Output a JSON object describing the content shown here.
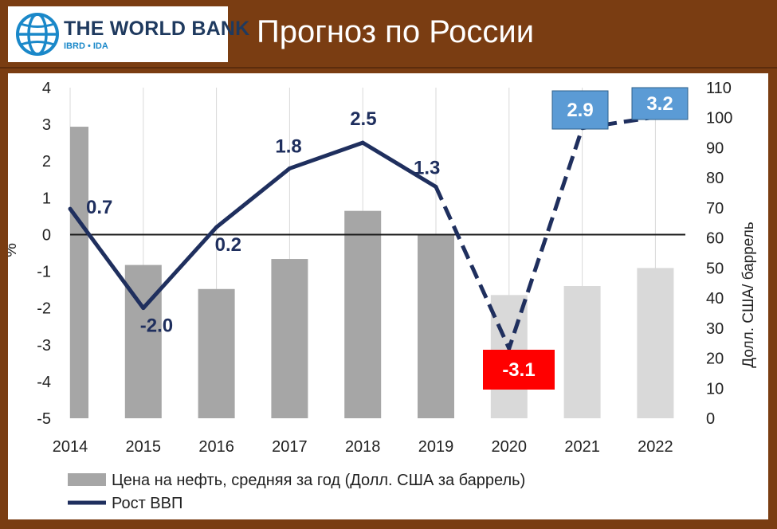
{
  "header": {
    "logo_name": "THE WORLD BANK",
    "logo_sub": "IBRD • IDA",
    "title": "Прогноз по России"
  },
  "chart_data": {
    "type": "bar+line",
    "categories": [
      "2014",
      "2015",
      "2016",
      "2017",
      "2018",
      "2019",
      "2020",
      "2021",
      "2022"
    ],
    "series": [
      {
        "name": "Цена на нефть, средняя за год (Долл. США за баррель)",
        "type": "bar",
        "axis": "right",
        "values": [
          97,
          51,
          43,
          53,
          69,
          61,
          41,
          44,
          50
        ],
        "colors": [
          "#a6a6a6",
          "#a6a6a6",
          "#a6a6a6",
          "#a6a6a6",
          "#a6a6a6",
          "#a6a6a6",
          "#d9d9d9",
          "#d9d9d9",
          "#d9d9d9"
        ]
      },
      {
        "name": "Рост ВВП",
        "type": "line",
        "axis": "left",
        "values": [
          0.7,
          -2.0,
          0.2,
          1.8,
          2.5,
          1.3,
          -3.1,
          2.9,
          3.2
        ],
        "labels": [
          "0.7",
          "-2.0",
          "0.2",
          "1.8",
          "2.5",
          "1.3",
          "-3.1",
          "2.9",
          "3.2"
        ],
        "forecast_from_index": 5,
        "color": "#1f2f5e"
      }
    ],
    "y_left": {
      "label": "%",
      "ylim": [
        -5,
        4
      ],
      "ticks": [
        "4",
        "3",
        "2",
        "1",
        "0",
        "-1",
        "-2",
        "-3",
        "-4",
        "-5"
      ]
    },
    "y_right": {
      "label": "Долл. США/ баррель",
      "ylim": [
        0,
        110
      ],
      "ticks": [
        "110",
        "100",
        "90",
        "80",
        "70",
        "60",
        "50",
        "40",
        "30",
        "20",
        "10",
        "0"
      ]
    },
    "legend": {
      "position": "bottom-left"
    },
    "label_styles": {
      "-3.1": {
        "bg": "#ff0000",
        "fg": "#ffffff"
      },
      "2.9": {
        "bg": "#5b9bd5",
        "fg": "#ffffff"
      },
      "3.2": {
        "bg": "#5b9bd5",
        "fg": "#ffffff"
      }
    },
    "grid": "vertical"
  }
}
